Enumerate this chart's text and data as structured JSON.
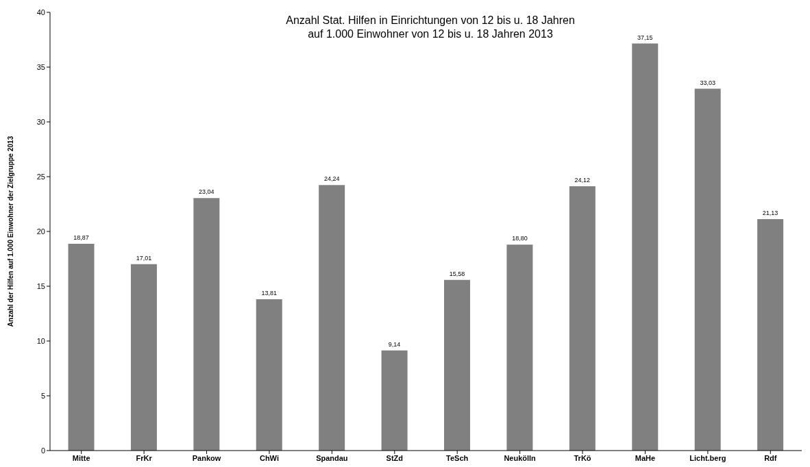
{
  "chart_data": {
    "type": "bar",
    "title": "Anzahl Stat. Hilfen in Einrichtungen von 12 bis u. 18 Jahren\nauf 1.000 Einwohner von 12 bis u. 18 Jahren 2013",
    "ylabel": "Anzahl der Hilfen auf 1.000 Einwohner der Zielgruppe 2013",
    "categories": [
      "Mitte",
      "FrKr",
      "Pankow",
      "ChWi",
      "Spandau",
      "StZd",
      "TeSch",
      "Neukölln",
      "TrKö",
      "MaHe",
      "Licht.berg",
      "Rdf"
    ],
    "values": [
      18.87,
      17.01,
      23.04,
      13.81,
      24.24,
      9.14,
      15.58,
      18.8,
      24.12,
      37.15,
      33.03,
      21.13
    ],
    "value_labels": [
      "18,87",
      "17,01",
      "23,04",
      "13,81",
      "24,24",
      "9,14",
      "15,58",
      "18,80",
      "24,12",
      "37,15",
      "33,03",
      "21,13"
    ],
    "color": "#808080",
    "ylim": [
      0,
      40
    ],
    "yticks": [
      0,
      5,
      10,
      15,
      20,
      25,
      30,
      35,
      40
    ],
    "grid": false,
    "legend": false
  }
}
